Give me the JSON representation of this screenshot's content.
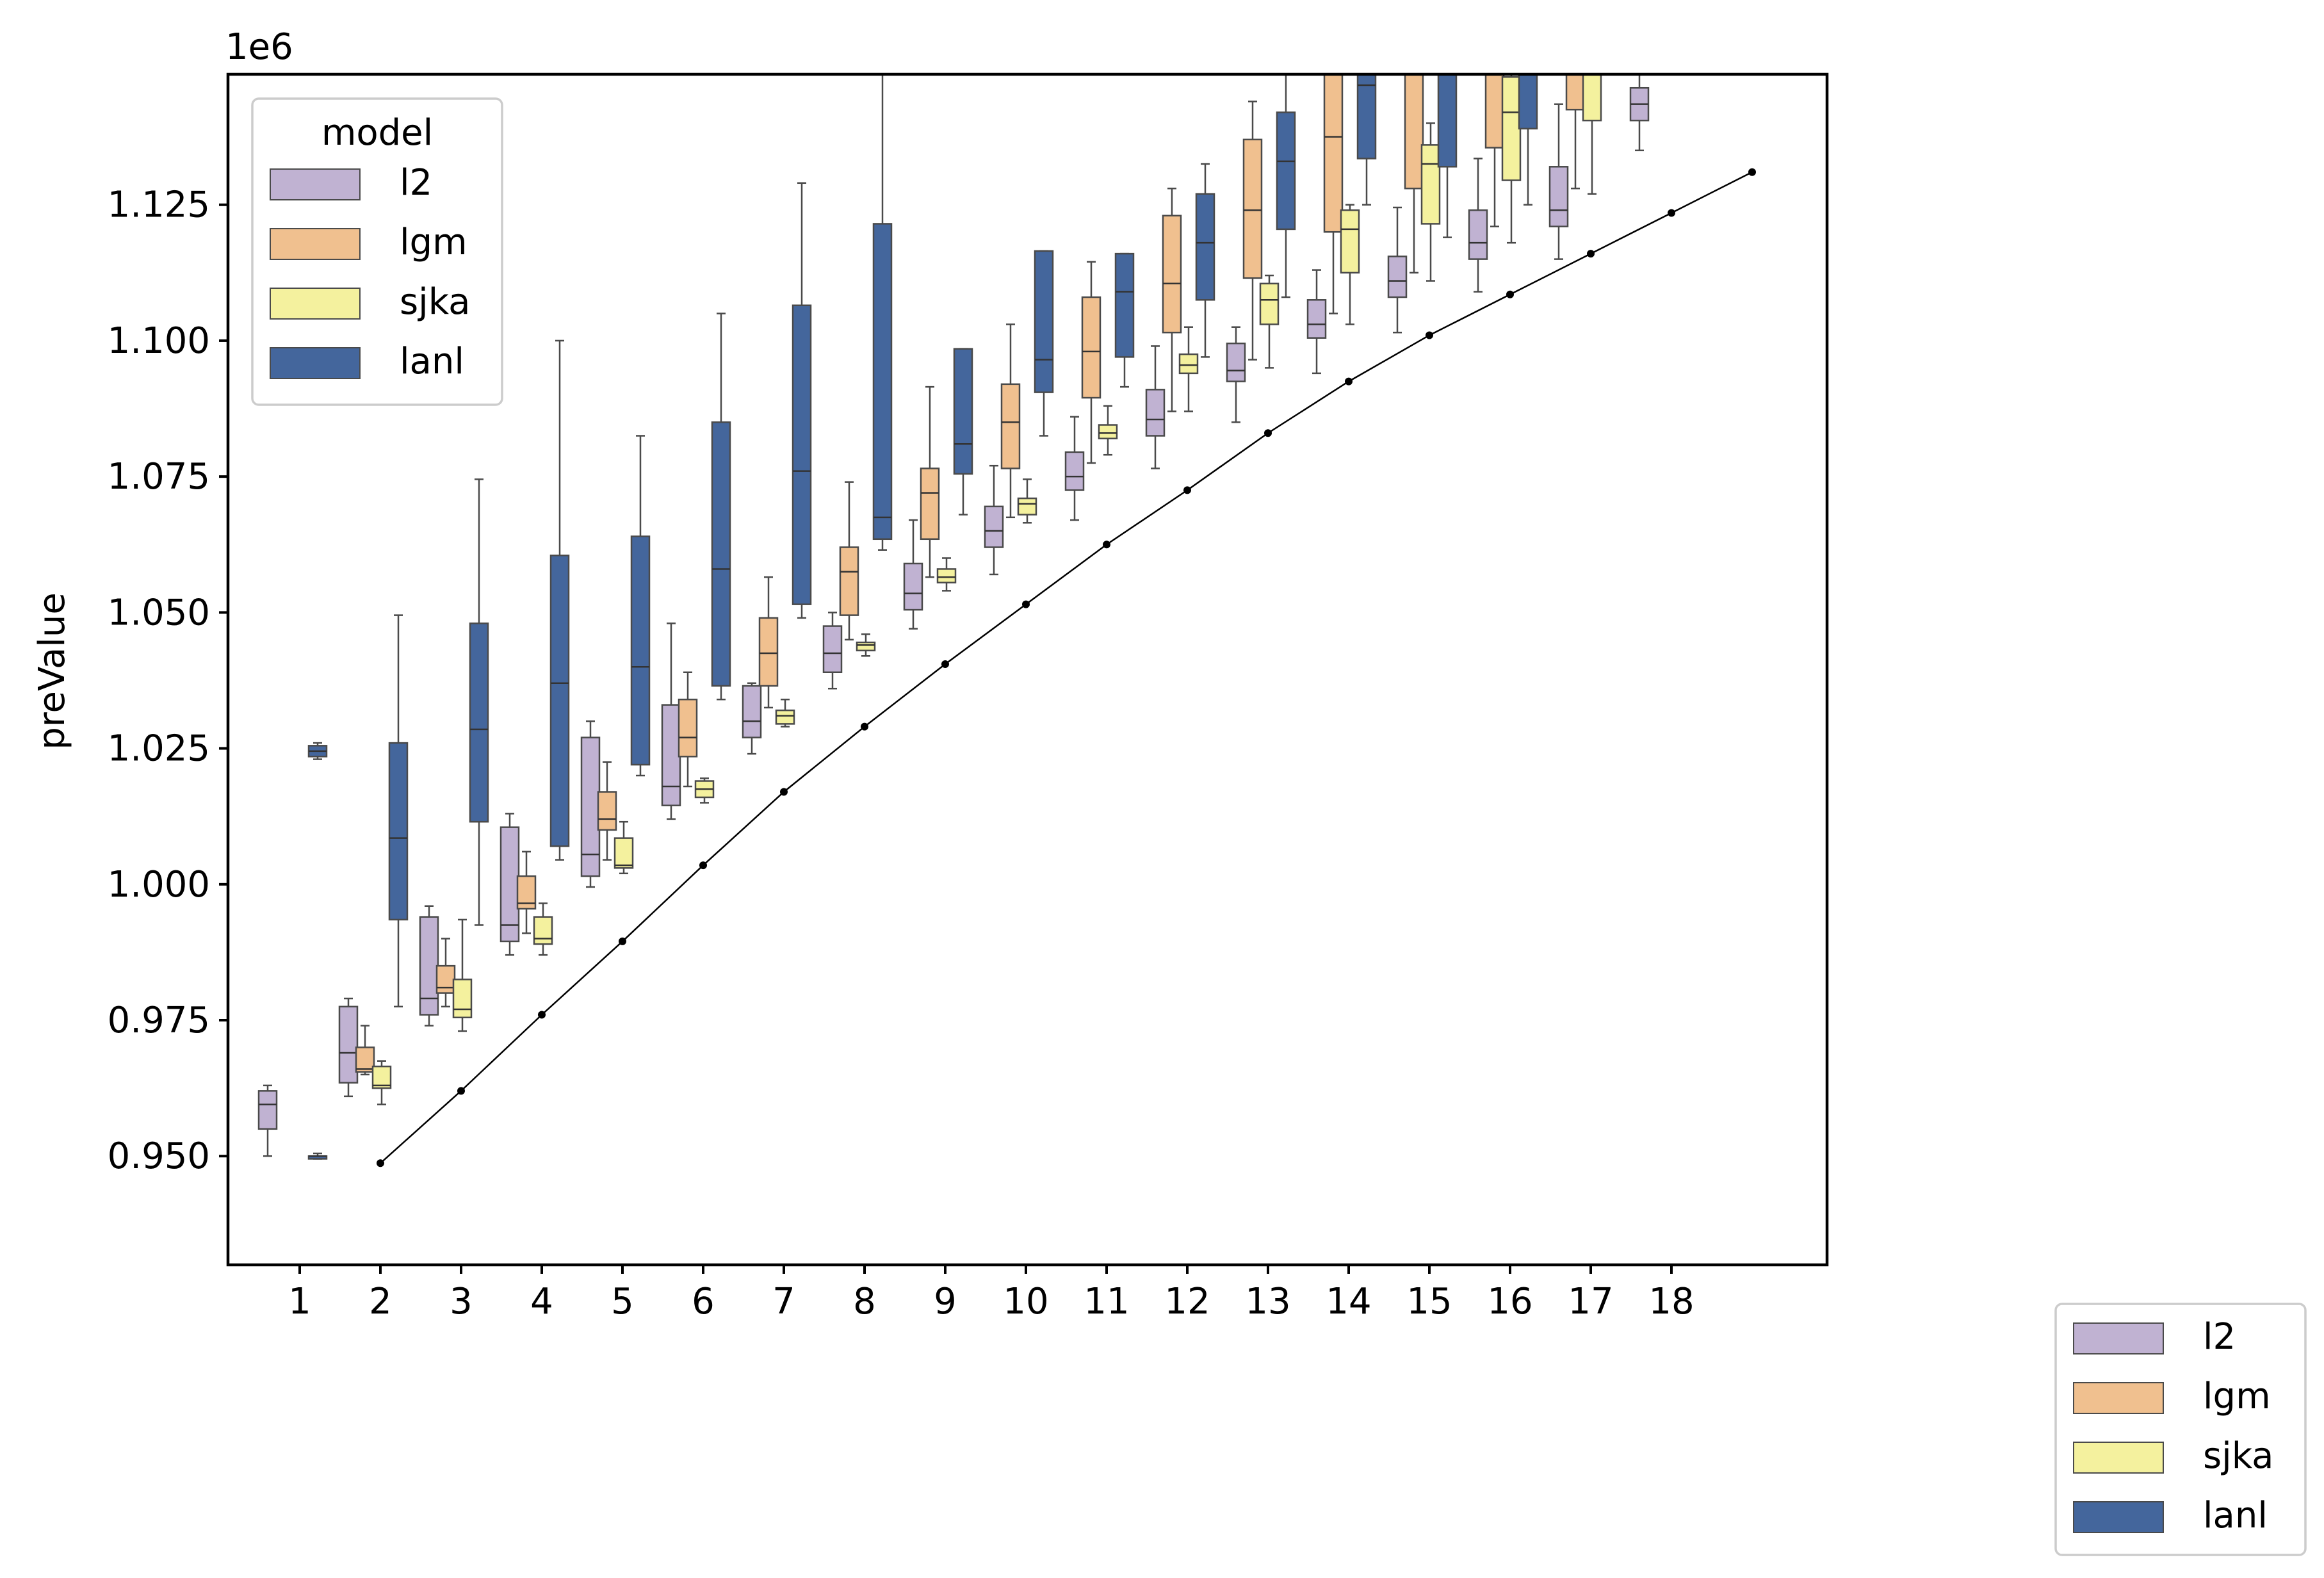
{
  "chart_data": {
    "type": "box",
    "offset_text": "1e6",
    "ylabel": "preValue",
    "xlabel": "",
    "ylim": [
      0.93,
      1.149
    ],
    "yticks": [
      "0.950",
      "0.975",
      "1.000",
      "1.025",
      "1.050",
      "1.075",
      "1.100",
      "1.125"
    ],
    "ytick_values": [
      0.95,
      0.975,
      1.0,
      1.025,
      1.05,
      1.075,
      1.1,
      1.125
    ],
    "categories": [
      "1",
      "2",
      "3",
      "4",
      "5",
      "6",
      "7",
      "8",
      "9",
      "10",
      "11",
      "12",
      "13",
      "14",
      "15",
      "16",
      "17",
      "18"
    ],
    "series": [
      {
        "name": "l2",
        "color": "#c0b2d2",
        "boxes": [
          [
            1,
            0.95,
            0.955,
            0.9595,
            0.962,
            0.963
          ],
          [
            2,
            0.961,
            0.9635,
            0.969,
            0.9775,
            0.979
          ],
          [
            3,
            0.974,
            0.976,
            0.979,
            0.994,
            0.996
          ],
          [
            4,
            0.987,
            0.9895,
            0.9925,
            1.0105,
            1.013
          ],
          [
            5,
            0.9995,
            1.0015,
            1.0055,
            1.027,
            1.03
          ],
          [
            6,
            1.012,
            1.0145,
            1.018,
            1.033,
            1.048
          ],
          [
            7,
            1.024,
            1.027,
            1.03,
            1.0365,
            1.037
          ],
          [
            8,
            1.036,
            1.039,
            1.0425,
            1.0475,
            1.05
          ],
          [
            9,
            1.047,
            1.0505,
            1.0535,
            1.059,
            1.067
          ],
          [
            10,
            1.057,
            1.062,
            1.065,
            1.0695,
            1.077
          ],
          [
            11,
            1.067,
            1.0725,
            1.075,
            1.0795,
            1.086
          ],
          [
            12,
            1.0765,
            1.0825,
            1.0855,
            1.091,
            1.099
          ],
          [
            13,
            1.085,
            1.0925,
            1.0945,
            1.0995,
            1.1025
          ],
          [
            14,
            1.094,
            1.1005,
            1.103,
            1.1075,
            1.113
          ],
          [
            15,
            1.1015,
            1.108,
            1.111,
            1.1155,
            1.1245
          ],
          [
            16,
            1.109,
            1.115,
            1.118,
            1.124,
            1.1335
          ],
          [
            17,
            1.115,
            1.121,
            1.124,
            1.132,
            1.1435
          ],
          [
            18,
            1.135,
            1.1405,
            1.1435,
            1.1465,
            1.149
          ]
        ]
      },
      {
        "name": "lgm",
        "color": "#f0c08f",
        "boxes": [
          [
            2,
            0.965,
            0.9655,
            0.966,
            0.97,
            0.974
          ],
          [
            3,
            0.9775,
            0.98,
            0.981,
            0.985,
            0.99
          ],
          [
            4,
            0.991,
            0.9955,
            0.9965,
            1.0015,
            1.006
          ],
          [
            5,
            1.0045,
            1.01,
            1.012,
            1.017,
            1.0225
          ],
          [
            6,
            1.018,
            1.0235,
            1.027,
            1.034,
            1.039
          ],
          [
            7,
            1.0325,
            1.0365,
            1.0425,
            1.049,
            1.0565
          ],
          [
            8,
            1.045,
            1.0495,
            1.0575,
            1.062,
            1.074
          ],
          [
            9,
            1.0565,
            1.0635,
            1.072,
            1.0765,
            1.0915
          ],
          [
            10,
            1.0675,
            1.0765,
            1.085,
            1.092,
            1.103
          ],
          [
            11,
            1.0775,
            1.0895,
            1.098,
            1.108,
            1.1145
          ],
          [
            12,
            1.087,
            1.1015,
            1.1105,
            1.123,
            1.128
          ],
          [
            13,
            1.0965,
            1.1115,
            1.124,
            1.137,
            1.144
          ],
          [
            14,
            1.105,
            1.12,
            1.1375,
            1.149,
            1.149
          ],
          [
            15,
            1.1125,
            1.128,
            1.149,
            1.149,
            1.149
          ],
          [
            16,
            1.121,
            1.1355,
            1.149,
            1.149,
            1.149
          ],
          [
            17,
            1.128,
            1.1425,
            1.149,
            1.149,
            1.149
          ]
        ]
      },
      {
        "name": "sjka",
        "color": "#f4f19e",
        "boxes": [
          [
            2,
            0.9595,
            0.9625,
            0.963,
            0.9665,
            0.9675
          ],
          [
            3,
            0.973,
            0.9755,
            0.977,
            0.9825,
            0.9935
          ],
          [
            4,
            0.987,
            0.989,
            0.99,
            0.994,
            0.9965
          ],
          [
            5,
            1.002,
            1.003,
            1.0035,
            1.0085,
            1.0115
          ],
          [
            6,
            1.015,
            1.016,
            1.0175,
            1.019,
            1.0195
          ],
          [
            7,
            1.029,
            1.0295,
            1.031,
            1.032,
            1.034
          ],
          [
            8,
            1.042,
            1.043,
            1.044,
            1.0445,
            1.046
          ],
          [
            9,
            1.054,
            1.0555,
            1.0565,
            1.058,
            1.06
          ],
          [
            10,
            1.0665,
            1.068,
            1.07,
            1.071,
            1.0745
          ],
          [
            11,
            1.079,
            1.082,
            1.083,
            1.0845,
            1.088
          ],
          [
            12,
            1.087,
            1.094,
            1.0955,
            1.0975,
            1.1025
          ],
          [
            13,
            1.095,
            1.103,
            1.1075,
            1.1105,
            1.112
          ],
          [
            14,
            1.103,
            1.1125,
            1.1205,
            1.124,
            1.125
          ],
          [
            15,
            1.111,
            1.1215,
            1.1325,
            1.136,
            1.14
          ],
          [
            16,
            1.118,
            1.1295,
            1.142,
            1.1485,
            1.149
          ],
          [
            17,
            1.127,
            1.1405,
            1.149,
            1.149,
            1.149
          ]
        ]
      },
      {
        "name": "lanl",
        "color": "#44669c",
        "boxes": [
          [
            1,
            0.9495,
            0.9495,
            0.95,
            0.95,
            0.9505
          ],
          [
            1,
            1.023,
            1.0235,
            1.0245,
            1.0255,
            1.026
          ],
          [
            2,
            0.9775,
            0.9935,
            1.0085,
            1.026,
            1.0495
          ],
          [
            3,
            0.9925,
            1.0115,
            1.0285,
            1.048,
            1.0745
          ],
          [
            4,
            1.0045,
            1.007,
            1.037,
            1.0605,
            1.1
          ],
          [
            5,
            1.02,
            1.022,
            1.04,
            1.064,
            1.0825
          ],
          [
            6,
            1.034,
            1.0365,
            1.058,
            1.085,
            1.105
          ],
          [
            7,
            1.049,
            1.0515,
            1.076,
            1.1065,
            1.129
          ],
          [
            8,
            1.0615,
            1.0635,
            1.0675,
            1.1215,
            1.149
          ],
          [
            9,
            1.068,
            1.0755,
            1.081,
            1.0985,
            1.0985
          ],
          [
            10,
            1.0825,
            1.0905,
            1.0965,
            1.1165,
            1.1165
          ],
          [
            11,
            1.0915,
            1.097,
            1.109,
            1.116,
            1.116
          ],
          [
            12,
            1.097,
            1.1075,
            1.118,
            1.127,
            1.1325
          ],
          [
            13,
            1.108,
            1.1205,
            1.133,
            1.142,
            1.149
          ],
          [
            14,
            1.125,
            1.1335,
            1.147,
            1.149,
            1.149
          ],
          [
            15,
            1.119,
            1.132,
            1.149,
            1.149,
            1.149
          ],
          [
            16,
            1.125,
            1.139,
            1.149,
            1.149,
            1.149
          ]
        ]
      }
    ],
    "reference_line": {
      "x": [
        2,
        3,
        4,
        5,
        6,
        7,
        8,
        9,
        10,
        11,
        12,
        13,
        14,
        15,
        16,
        17,
        18,
        19
      ],
      "y": [
        0.9487,
        0.962,
        0.976,
        0.9895,
        1.0035,
        1.017,
        1.029,
        1.0405,
        1.0515,
        1.0625,
        1.0725,
        1.083,
        1.0925,
        1.101,
        1.1085,
        1.116,
        1.1235,
        1.131
      ],
      "color": "#000000"
    },
    "legends": [
      {
        "title": "model",
        "placement": "upper-left",
        "entries": [
          "l2",
          "lgm",
          "sjka",
          "lanl"
        ]
      },
      {
        "title": "",
        "placement": "outside-bottom-right",
        "entries": [
          "l2",
          "lgm",
          "sjka",
          "lanl"
        ]
      }
    ],
    "grid": false
  }
}
